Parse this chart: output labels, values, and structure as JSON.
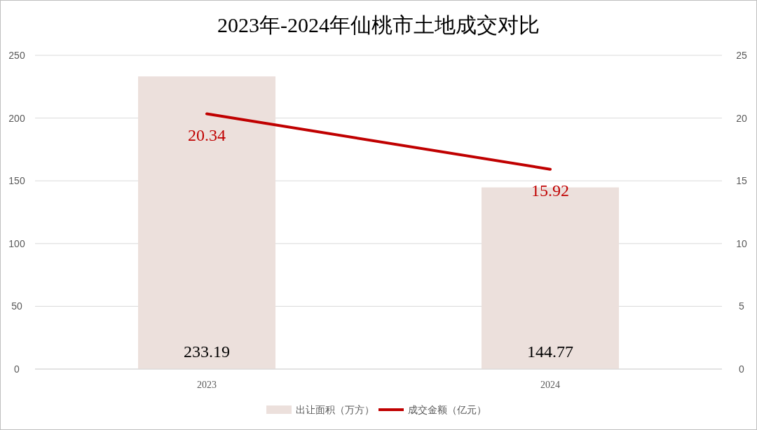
{
  "chart_data": {
    "type": "bar",
    "title": "2023年-2024年仙桃市土地成交对比",
    "categories": [
      "2023",
      "2024"
    ],
    "series": [
      {
        "name": "出让面积（万方）",
        "color": "#ece0dc",
        "values": [
          233.19,
          144.77
        ]
      },
      {
        "name": "成交金额（亿元）",
        "type": "line",
        "axis": "y2",
        "color": "#c00000",
        "values": [
          20.34,
          15.92
        ]
      }
    ],
    "ylim": [
      0,
      250
    ],
    "yticks": [
      0,
      50,
      100,
      150,
      200,
      250
    ],
    "y2lim": [
      0,
      25
    ],
    "y2ticks": [
      0,
      5,
      10,
      15,
      20,
      25
    ],
    "grid": "y",
    "legend": "bottom",
    "data_labels": true
  }
}
